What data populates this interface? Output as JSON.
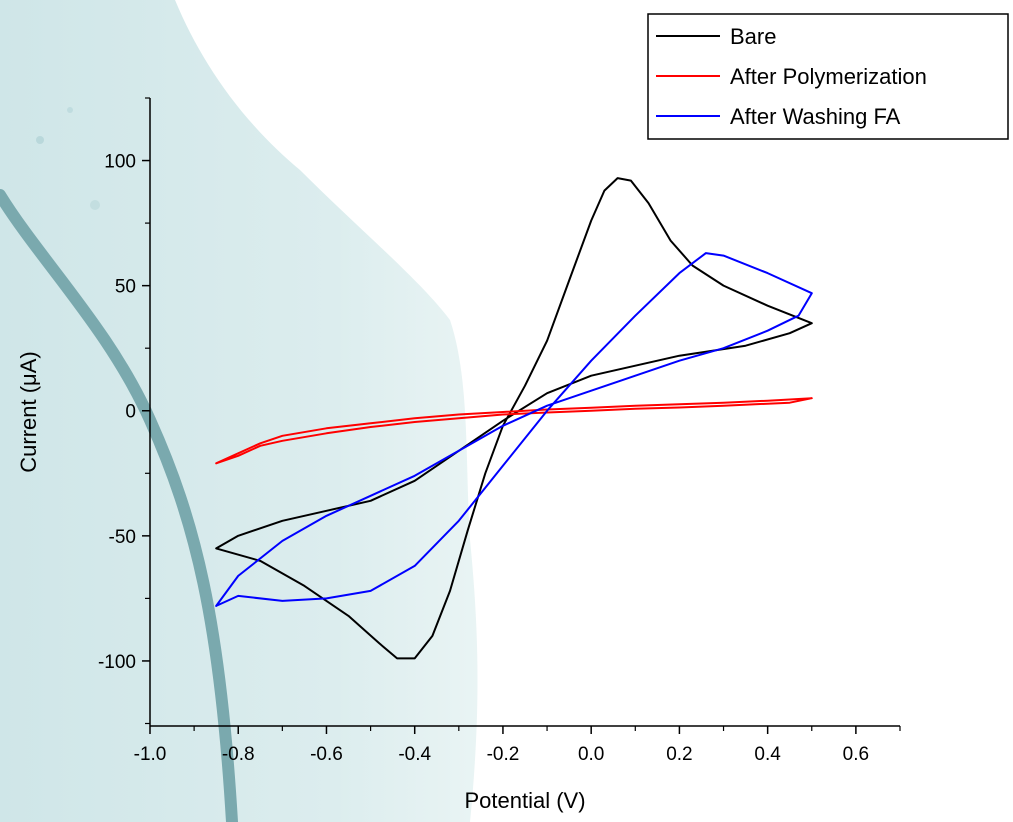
{
  "chart_data": {
    "type": "line",
    "title": "",
    "xlabel": "Potential (V)",
    "ylabel": "Current (μA)",
    "xlim": [
      -1.0,
      0.7
    ],
    "ylim": [
      -126,
      125
    ],
    "x_ticks": [
      -1.0,
      -0.8,
      -0.6,
      -0.4,
      -0.2,
      0.0,
      0.2,
      0.4,
      0.6
    ],
    "x_tick_labels": [
      "-1.0",
      "-0.8",
      "-0.6",
      "-0.4",
      "-0.2",
      "0.0",
      "0.2",
      "0.4",
      "0.6"
    ],
    "y_ticks": [
      -100,
      -50,
      0,
      50,
      100
    ],
    "y_tick_labels": [
      "-100",
      "-50",
      "0",
      "50",
      "100"
    ],
    "grid": false,
    "legend_position": "top-right",
    "series": [
      {
        "name": "Bare",
        "color": "#000000",
        "points": [
          [
            -0.85,
            -55
          ],
          [
            -0.75,
            -60
          ],
          [
            -0.65,
            -70
          ],
          [
            -0.55,
            -82
          ],
          [
            -0.48,
            -93
          ],
          [
            -0.44,
            -99
          ],
          [
            -0.4,
            -99
          ],
          [
            -0.36,
            -90
          ],
          [
            -0.32,
            -72
          ],
          [
            -0.28,
            -48
          ],
          [
            -0.24,
            -25
          ],
          [
            -0.2,
            -6
          ],
          [
            -0.15,
            10
          ],
          [
            -0.1,
            28
          ],
          [
            -0.05,
            52
          ],
          [
            0.0,
            76
          ],
          [
            0.03,
            88
          ],
          [
            0.06,
            93
          ],
          [
            0.09,
            92
          ],
          [
            0.13,
            83
          ],
          [
            0.18,
            68
          ],
          [
            0.23,
            58
          ],
          [
            0.3,
            50
          ],
          [
            0.4,
            42
          ],
          [
            0.5,
            35
          ],
          [
            0.45,
            31
          ],
          [
            0.35,
            26
          ],
          [
            0.2,
            22
          ],
          [
            0.1,
            18
          ],
          [
            0.0,
            14
          ],
          [
            -0.1,
            7
          ],
          [
            -0.2,
            -4
          ],
          [
            -0.3,
            -16
          ],
          [
            -0.4,
            -28
          ],
          [
            -0.5,
            -36
          ],
          [
            -0.6,
            -40
          ],
          [
            -0.7,
            -44
          ],
          [
            -0.8,
            -50
          ],
          [
            -0.85,
            -55
          ]
        ]
      },
      {
        "name": "After Polymerization",
        "color": "#ff0000",
        "points": [
          [
            -0.85,
            -21
          ],
          [
            -0.8,
            -17
          ],
          [
            -0.75,
            -13
          ],
          [
            -0.7,
            -10
          ],
          [
            -0.6,
            -7
          ],
          [
            -0.5,
            -5
          ],
          [
            -0.4,
            -3
          ],
          [
            -0.3,
            -1.5
          ],
          [
            -0.2,
            -0.5
          ],
          [
            -0.1,
            0.5
          ],
          [
            0.0,
            1.2
          ],
          [
            0.1,
            2
          ],
          [
            0.2,
            2.6
          ],
          [
            0.3,
            3.2
          ],
          [
            0.4,
            4
          ],
          [
            0.5,
            5
          ],
          [
            0.45,
            3.2
          ],
          [
            0.3,
            2
          ],
          [
            0.2,
            1.3
          ],
          [
            0.1,
            0.8
          ],
          [
            0.0,
            0
          ],
          [
            -0.1,
            -0.7
          ],
          [
            -0.2,
            -1.5
          ],
          [
            -0.3,
            -3
          ],
          [
            -0.4,
            -4.5
          ],
          [
            -0.5,
            -6.5
          ],
          [
            -0.6,
            -9
          ],
          [
            -0.7,
            -12
          ],
          [
            -0.75,
            -14
          ],
          [
            -0.8,
            -18
          ],
          [
            -0.85,
            -21
          ]
        ]
      },
      {
        "name": "After Washing FA",
        "color": "#0000ff",
        "points": [
          [
            -0.85,
            -78
          ],
          [
            -0.8,
            -74
          ],
          [
            -0.7,
            -76
          ],
          [
            -0.6,
            -75
          ],
          [
            -0.5,
            -72
          ],
          [
            -0.4,
            -62
          ],
          [
            -0.3,
            -44
          ],
          [
            -0.2,
            -22
          ],
          [
            -0.1,
            0
          ],
          [
            0.0,
            20
          ],
          [
            0.1,
            38
          ],
          [
            0.2,
            55
          ],
          [
            0.26,
            63
          ],
          [
            0.3,
            62
          ],
          [
            0.4,
            55
          ],
          [
            0.5,
            47
          ],
          [
            0.47,
            38
          ],
          [
            0.4,
            32
          ],
          [
            0.3,
            25
          ],
          [
            0.2,
            20
          ],
          [
            0.1,
            14
          ],
          [
            0.0,
            8
          ],
          [
            -0.1,
            2
          ],
          [
            -0.2,
            -6
          ],
          [
            -0.3,
            -16
          ],
          [
            -0.4,
            -26
          ],
          [
            -0.5,
            -34
          ],
          [
            -0.6,
            -42
          ],
          [
            -0.7,
            -52
          ],
          [
            -0.8,
            -66
          ],
          [
            -0.85,
            -78
          ]
        ]
      }
    ]
  }
}
